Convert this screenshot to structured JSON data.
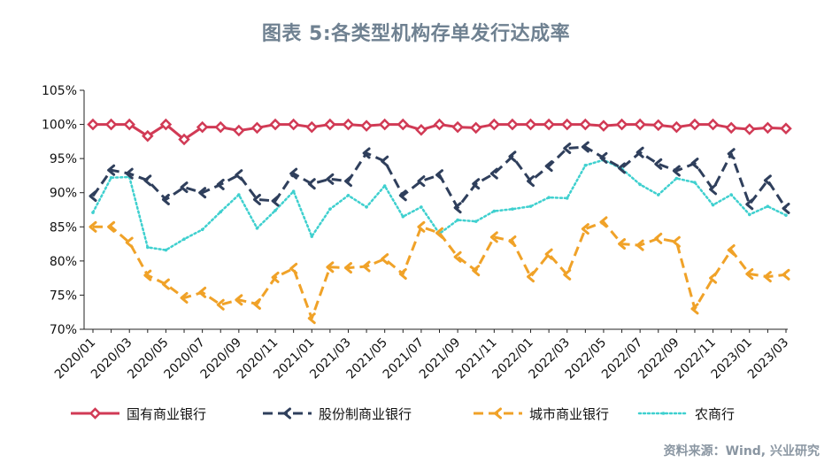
{
  "title": "图表 5:各类型机构存单发行达成率",
  "source": "资料来源：Wind, 兴业研究",
  "chart_data": {
    "type": "line",
    "title": "图表 5:各类型机构存单发行达成率",
    "ylim": [
      70,
      105
    ],
    "ytick_labels": [
      "70%",
      "75%",
      "80%",
      "85%",
      "90%",
      "95%",
      "100%",
      "105%"
    ],
    "yticks": [
      70,
      75,
      80,
      85,
      90,
      95,
      100,
      105
    ],
    "grid": false,
    "legend_position": "bottom",
    "x": [
      "2020/01",
      "2020/02",
      "2020/03",
      "2020/04",
      "2020/05",
      "2020/06",
      "2020/07",
      "2020/08",
      "2020/09",
      "2020/10",
      "2020/11",
      "2020/12",
      "2021/01",
      "2021/02",
      "2021/03",
      "2021/04",
      "2021/05",
      "2021/06",
      "2021/07",
      "2021/08",
      "2021/09",
      "2021/10",
      "2021/11",
      "2021/12",
      "2022/01",
      "2022/02",
      "2022/03",
      "2022/04",
      "2022/05",
      "2022/06",
      "2022/07",
      "2022/08",
      "2022/09",
      "2022/10",
      "2022/11",
      "2022/12",
      "2023/01",
      "2023/02",
      "2023/03"
    ],
    "xtick_labels": [
      "2020/01",
      "2020/03",
      "2020/05",
      "2020/07",
      "2020/09",
      "2020/11",
      "2021/01",
      "2021/03",
      "2021/05",
      "2021/07",
      "2021/09",
      "2021/11",
      "2022/01",
      "2022/03",
      "2022/05",
      "2022/07",
      "2022/09",
      "2022/11",
      "2023/01",
      "2023/03"
    ],
    "series": [
      {
        "name": "国有商业银行",
        "color": "#d13a55",
        "style": "solid",
        "marker": "diamond",
        "values": [
          100,
          100,
          100,
          98.3,
          100,
          97.8,
          99.6,
          99.6,
          99.1,
          99.5,
          100,
          100,
          99.6,
          100,
          100,
          99.8,
          100,
          100,
          99.2,
          100,
          99.6,
          99.5,
          100,
          100,
          100,
          100,
          100,
          100,
          99.8,
          100,
          100,
          99.9,
          99.6,
          100,
          100,
          99.5,
          99.3,
          99.5,
          99.4
        ]
      },
      {
        "name": "股份制商业银行",
        "color": "#2f3f5c",
        "style": "dash",
        "marker": "chevron",
        "values": [
          89.5,
          93.3,
          92.8,
          91.8,
          89.0,
          90.8,
          90.0,
          91.2,
          92.6,
          89.0,
          88.8,
          92.8,
          91.3,
          92.0,
          91.7,
          95.8,
          94.6,
          89.6,
          91.7,
          92.6,
          87.8,
          91.3,
          92.8,
          95.3,
          91.7,
          93.9,
          96.5,
          96.7,
          95.1,
          93.6,
          95.9,
          94.2,
          93.2,
          94.3,
          90.5,
          95.7,
          88.3,
          91.8,
          87.7
        ]
      },
      {
        "name": "城市商业银行",
        "color": "#f0a228",
        "style": "dash",
        "marker": "chevron",
        "values": [
          85.0,
          85.0,
          82.7,
          77.9,
          76.6,
          74.6,
          75.4,
          73.6,
          74.3,
          73.7,
          77.6,
          78.9,
          71.6,
          79.1,
          79.0,
          79.2,
          80.3,
          78.1,
          85.0,
          84.1,
          80.6,
          78.6,
          83.5,
          82.9,
          77.7,
          81.0,
          78.0,
          84.7,
          85.7,
          82.5,
          82.3,
          83.3,
          82.8,
          73.0,
          77.5,
          81.6,
          78.1,
          77.7,
          78.0
        ]
      },
      {
        "name": "农商行",
        "color": "#3fd0cf",
        "style": "dot",
        "marker": "dot",
        "values": [
          87.1,
          92.2,
          92.3,
          82.0,
          81.6,
          83.2,
          84.6,
          87.2,
          89.7,
          84.8,
          87.4,
          90.2,
          83.6,
          87.6,
          89.6,
          87.9,
          91.0,
          86.5,
          87.9,
          84.0,
          86.0,
          85.8,
          87.3,
          87.6,
          88.0,
          89.3,
          89.2,
          94.0,
          94.8,
          93.5,
          91.2,
          89.7,
          92.1,
          91.5,
          88.2,
          89.7,
          86.8,
          88.0,
          86.7
        ]
      }
    ]
  }
}
